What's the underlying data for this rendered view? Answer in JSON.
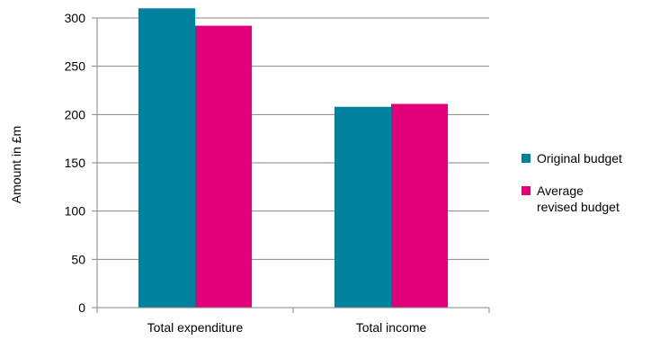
{
  "chart_data": {
    "type": "bar",
    "title": "",
    "xlabel": "",
    "ylabel": "Amount in £m",
    "ylim": [
      0,
      300
    ],
    "yticks": [
      0,
      50,
      100,
      150,
      200,
      250,
      300
    ],
    "grid": true,
    "legend_position": "right",
    "categories": [
      "Total expenditure",
      "Total income"
    ],
    "series": [
      {
        "name": "Original budget",
        "legend_lines": [
          "Original budget"
        ],
        "color": "#00819E",
        "values": [
          310,
          208
        ]
      },
      {
        "name": "Average revised budget",
        "legend_lines": [
          "Average",
          "revised budget"
        ],
        "color": "#E2007A",
        "values": [
          292,
          211
        ]
      }
    ]
  }
}
